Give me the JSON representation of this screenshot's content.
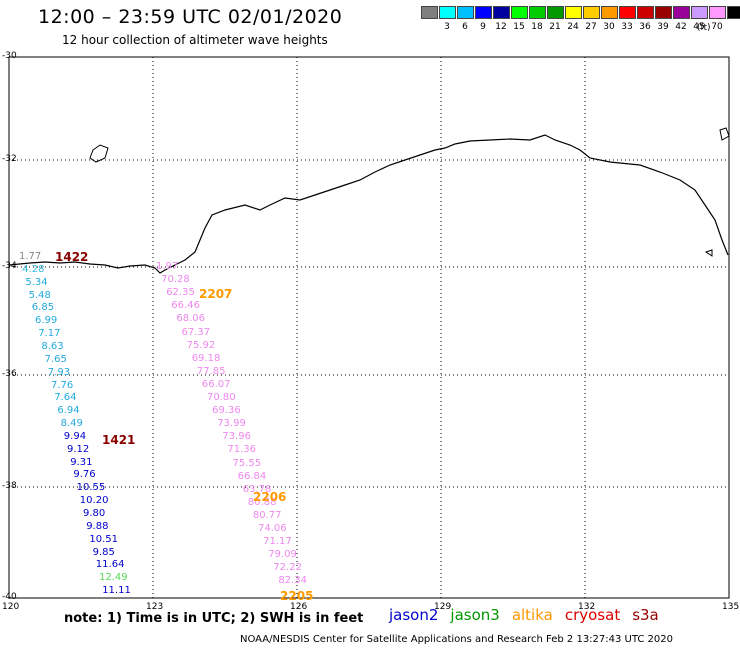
{
  "title": "12:00 – 23:59 UTC 02/01/2020",
  "subtitle": "12 hour collection of altimeter wave heights",
  "legend": {
    "unit": "(ft)",
    "items": [
      {
        "label": "",
        "color": "#7f7f7f"
      },
      {
        "label": "3",
        "color": "#00ffff"
      },
      {
        "label": "6",
        "color": "#00bfff"
      },
      {
        "label": "9",
        "color": "#0000ff"
      },
      {
        "label": "12",
        "color": "#00009f"
      },
      {
        "label": "15",
        "color": "#00ff00"
      },
      {
        "label": "18",
        "color": "#00cc00"
      },
      {
        "label": "21",
        "color": "#009900"
      },
      {
        "label": "24",
        "color": "#ffff00"
      },
      {
        "label": "27",
        "color": "#ffcc00"
      },
      {
        "label": "30",
        "color": "#ff9900"
      },
      {
        "label": "33",
        "color": "#ff0000"
      },
      {
        "label": "36",
        "color": "#cc0000"
      },
      {
        "label": "39",
        "color": "#990000"
      },
      {
        "label": "42",
        "color": "#990099"
      },
      {
        "label": "45",
        "color": "#cc99ff"
      },
      {
        "label": "70",
        "color": "#ff99ff"
      },
      {
        "label": "",
        "color": "#000000"
      }
    ]
  },
  "axes": {
    "lat_labels": [
      "-30",
      "-32",
      "-34",
      "-36",
      "-38",
      "-40"
    ],
    "lon_labels": [
      "120",
      "123",
      "126",
      "129",
      "132",
      "135"
    ]
  },
  "tracks": {
    "left": {
      "values": [
        {
          "v": "1.77",
          "c": "#888888"
        },
        {
          "v": "4.28",
          "c": "#33bbdd"
        },
        {
          "v": "5.34",
          "c": "#22aadd"
        },
        {
          "v": "5.48",
          "c": "#22aadd"
        },
        {
          "v": "6.85",
          "c": "#22aadd"
        },
        {
          "v": "6.99",
          "c": "#22aadd"
        },
        {
          "v": "7.17",
          "c": "#22aadd"
        },
        {
          "v": "8.63",
          "c": "#22aadd"
        },
        {
          "v": "7.65",
          "c": "#22aadd"
        },
        {
          "v": "7.93",
          "c": "#22aadd"
        },
        {
          "v": "7.76",
          "c": "#22aadd"
        },
        {
          "v": "7.64",
          "c": "#22aadd"
        },
        {
          "v": "6.94",
          "c": "#22aadd"
        },
        {
          "v": "8.49",
          "c": "#22aadd"
        },
        {
          "v": "9.94",
          "c": "#0000cc"
        },
        {
          "v": "9.12",
          "c": "#0000cc"
        },
        {
          "v": "9.31",
          "c": "#0000cc"
        },
        {
          "v": "9.76",
          "c": "#0000cc"
        },
        {
          "v": "10.55",
          "c": "#0000cc"
        },
        {
          "v": "10.20",
          "c": "#0000cc"
        },
        {
          "v": "9.80",
          "c": "#0000cc"
        },
        {
          "v": "9.88",
          "c": "#0000cc"
        },
        {
          "v": "10.51",
          "c": "#0000cc"
        },
        {
          "v": "9.85",
          "c": "#0000cc"
        },
        {
          "v": "11.64",
          "c": "#0000cc"
        },
        {
          "v": "12.49",
          "c": "#55dd55"
        },
        {
          "v": "11.11",
          "c": "#0000cc"
        }
      ],
      "times": [
        {
          "t": "1422",
          "c": "#880000"
        },
        {
          "t": "1421",
          "c": "#880000"
        }
      ]
    },
    "right": {
      "values": [
        {
          "v": "1.97",
          "c": "#ee88ee"
        },
        {
          "v": "70.28",
          "c": "#ee88ee"
        },
        {
          "v": "62.35",
          "c": "#ee88ee"
        },
        {
          "v": "66.46",
          "c": "#ee88ee"
        },
        {
          "v": "68.06",
          "c": "#ee88ee"
        },
        {
          "v": "67.37",
          "c": "#ee88ee"
        },
        {
          "v": "75.92",
          "c": "#ee88ee"
        },
        {
          "v": "69.18",
          "c": "#ee88ee"
        },
        {
          "v": "77.85",
          "c": "#ee88ee"
        },
        {
          "v": "66.07",
          "c": "#ee88ee"
        },
        {
          "v": "70.80",
          "c": "#ee88ee"
        },
        {
          "v": "69.36",
          "c": "#ee88ee"
        },
        {
          "v": "73.99",
          "c": "#ee88ee"
        },
        {
          "v": "73.96",
          "c": "#ee88ee"
        },
        {
          "v": "71.36",
          "c": "#ee88ee"
        },
        {
          "v": "75.55",
          "c": "#ee88ee"
        },
        {
          "v": "66.84",
          "c": "#ee88ee"
        },
        {
          "v": "63.78",
          "c": "#ee88ee"
        },
        {
          "v": "80.88",
          "c": "#ee88ee"
        },
        {
          "v": "80.77",
          "c": "#ee88ee"
        },
        {
          "v": "74.06",
          "c": "#ee88ee"
        },
        {
          "v": "71.17",
          "c": "#ee88ee"
        },
        {
          "v": "79.09",
          "c": "#ee88ee"
        },
        {
          "v": "72.22",
          "c": "#ee88ee"
        },
        {
          "v": "82.34",
          "c": "#ee88ee"
        }
      ],
      "times": [
        {
          "t": "2207",
          "c": "#ff9900"
        },
        {
          "t": "2206",
          "c": "#ff9900"
        },
        {
          "t": "2205",
          "c": "#ff9900"
        }
      ]
    }
  },
  "note": "note:  1) Time is in UTC;  2) SWH is in feet",
  "satellites": [
    {
      "name": "jason2",
      "color": "#0000cc"
    },
    {
      "name": "jason3",
      "color": "#009900"
    },
    {
      "name": "altika",
      "color": "#ff9900"
    },
    {
      "name": "cryosat",
      "color": "#dd0000"
    },
    {
      "name": "s3a",
      "color": "#990000"
    }
  ],
  "credit": "NOAA/NESDIS Center for Satellite Applications and Research    Feb  2 13:27:43 UTC 2020"
}
